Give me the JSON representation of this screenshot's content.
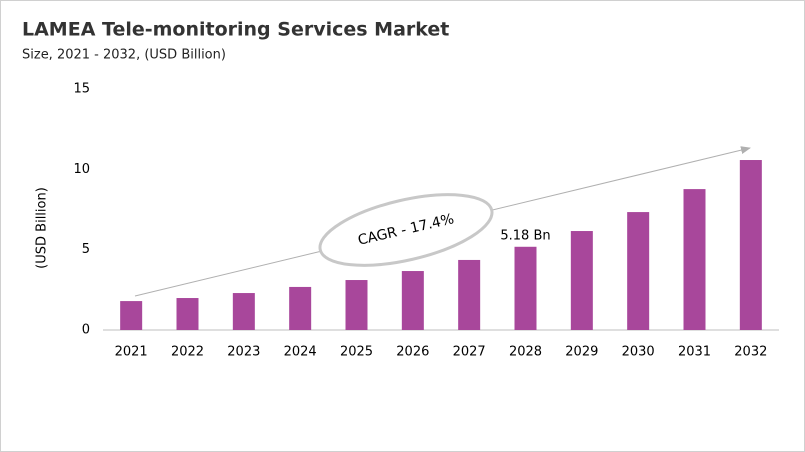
{
  "chart_data": {
    "type": "bar",
    "title": "LAMEA Tele-monitoring Services Market",
    "subtitle": "Size, 2021 - 2032, (USD Billion)",
    "y_label": "(USD Billion)",
    "annotation": "CAGR - 17.4%",
    "categories": [
      "2021",
      "2022",
      "2023",
      "2024",
      "2025",
      "2026",
      "2027",
      "2028",
      "2029",
      "2030",
      "2031",
      "2032"
    ],
    "values": [
      1.8,
      1.99,
      2.3,
      2.68,
      3.11,
      3.67,
      4.36,
      5.18,
      6.16,
      7.34,
      8.77,
      10.58
    ],
    "value_labels": [
      null,
      null,
      null,
      null,
      null,
      null,
      null,
      "5.18 Bn",
      null,
      null,
      null,
      null
    ],
    "color": "#a8479b",
    "ylim": [
      0,
      15
    ],
    "yticks": [
      0,
      5,
      10,
      15
    ],
    "grid": false
  }
}
